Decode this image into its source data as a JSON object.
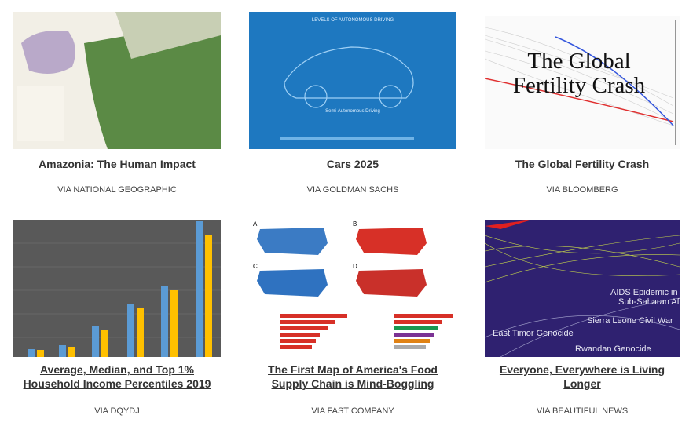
{
  "cards": [
    {
      "title": "Amazonia: The Human Impact",
      "source": "VIA NATIONAL GEOGRAPHIC"
    },
    {
      "title": "Cars 2025",
      "source": "VIA GOLDMAN SACHS",
      "image_text": [
        "LEVELS OF AUTONOMOUS DRIVING",
        "Semi-Autonomous Driving"
      ]
    },
    {
      "title": "The Global Fertility Crash",
      "source": "VIA BLOOMBERG",
      "image_text": [
        "The Global",
        "Fertility Crash"
      ]
    },
    {
      "title": "Average, Median, and Top 1% Household Income Percentiles 2019",
      "source": "VIA DQYDJ"
    },
    {
      "title": "The First Map of America's Food Supply Chain is Mind-Boggling",
      "source": "VIA FAST COMPANY",
      "image_text": [
        "A",
        "B",
        "C",
        "D"
      ]
    },
    {
      "title": "Everyone, Everywhere is Living Longer",
      "source": "VIA BEAUTIFUL NEWS",
      "image_text": [
        "AIDS Epidemic in",
        "Sub-Saharan Af",
        "Sierra Leone Civil War",
        "East Timor Genocide",
        "Rwandan Genocide"
      ]
    }
  ]
}
